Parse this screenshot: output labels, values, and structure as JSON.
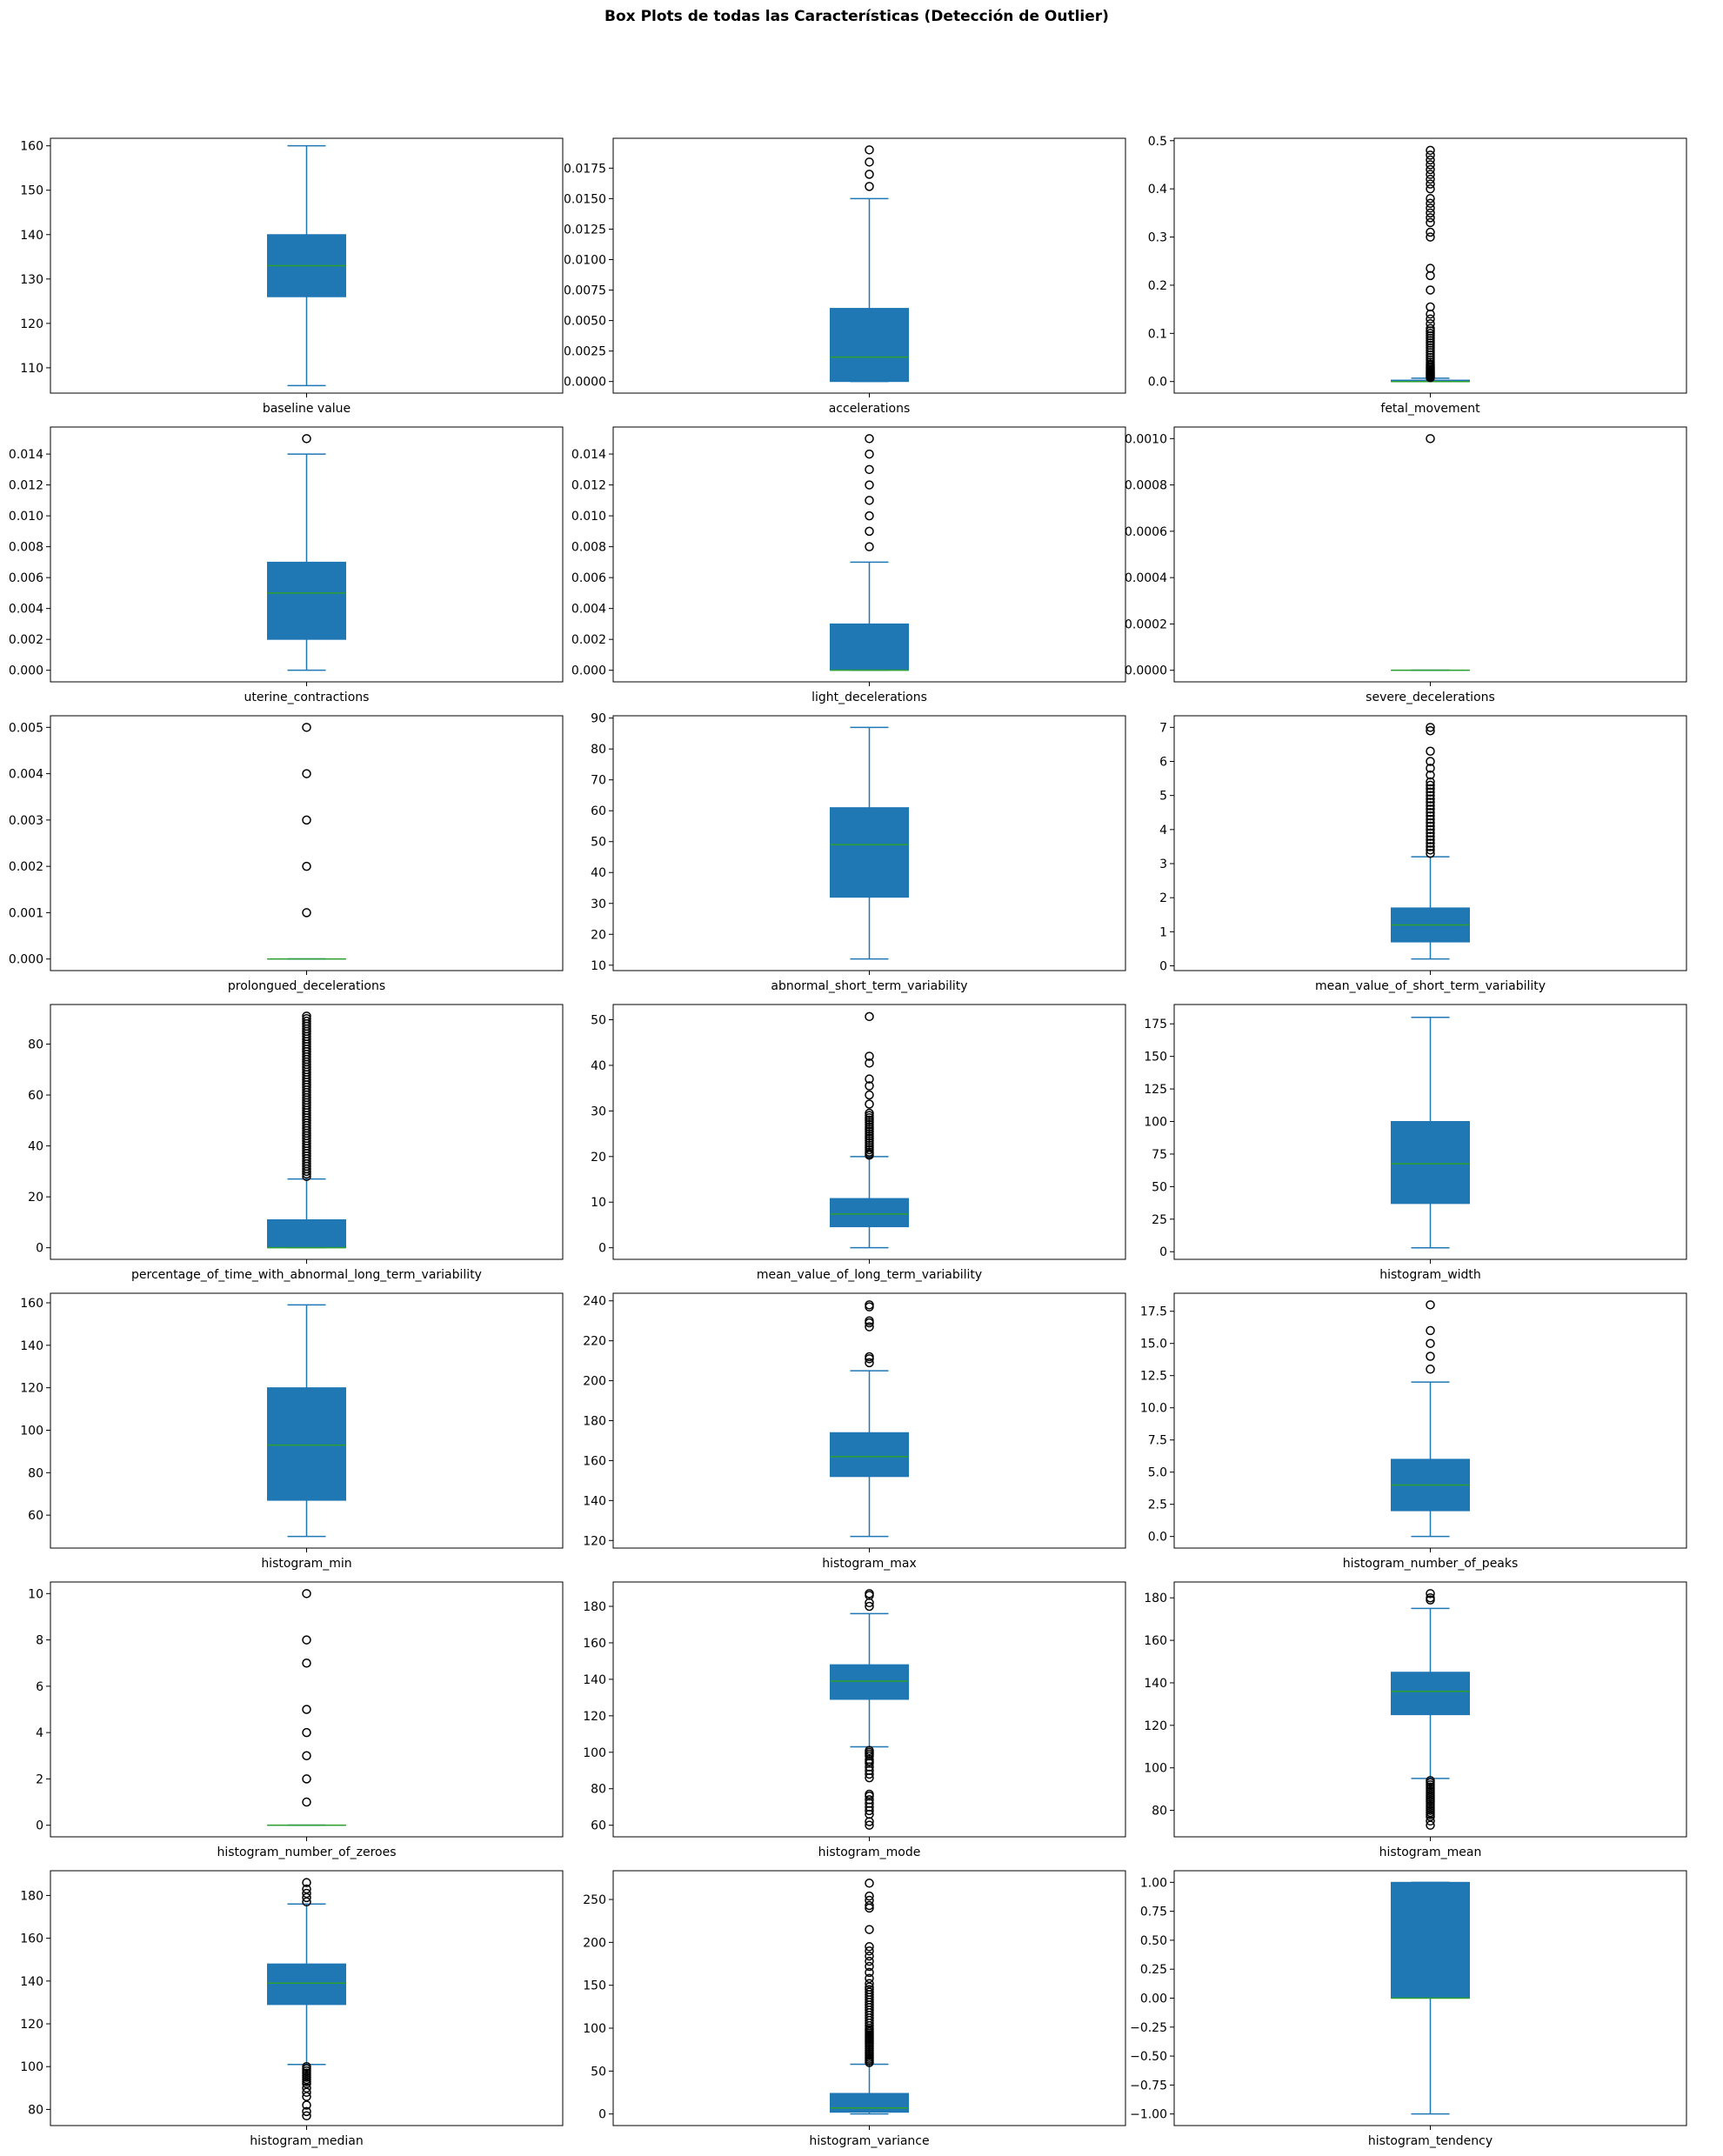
{
  "figure": {
    "title": "Box Plots de todas las Características (Detección de Outlier)"
  },
  "colors": {
    "box_fill": "#1f77b4",
    "whisker": "#1f77b4",
    "median": "#2ca02c",
    "flier_edge": "#000000",
    "axes": "#000000"
  },
  "chart_data": [
    {
      "type": "box",
      "label": "baseline value",
      "ylim": [
        104.3,
        161.7
      ],
      "ticks": [
        110,
        120,
        130,
        140,
        150,
        160
      ],
      "tick_labels": [
        "110",
        "120",
        "130",
        "140",
        "150",
        "160"
      ],
      "stats": {
        "q1": 126,
        "median": 133,
        "q3": 140,
        "whislo": 106,
        "whishi": 160
      },
      "fliers": []
    },
    {
      "type": "box",
      "label": "accelerations",
      "ylim": [
        -0.00095,
        0.01995
      ],
      "ticks": [
        0,
        0.0025,
        0.005,
        0.0075,
        0.01,
        0.0125,
        0.015,
        0.0175
      ],
      "tick_labels": [
        "0.0000",
        "0.0025",
        "0.0050",
        "0.0075",
        "0.0100",
        "0.0125",
        "0.0150",
        "0.0175"
      ],
      "stats": {
        "q1": 0,
        "median": 0.002,
        "q3": 0.006,
        "whislo": 0,
        "whishi": 0.015
      },
      "fliers": [
        0.016,
        0.017,
        0.018,
        0.019
      ]
    },
    {
      "type": "box",
      "label": "fetal_movement",
      "ylim": [
        -0.024,
        0.505
      ],
      "ticks": [
        0,
        0.1,
        0.2,
        0.3,
        0.4,
        0.5
      ],
      "tick_labels": [
        "0.0",
        "0.1",
        "0.2",
        "0.3",
        "0.4",
        "0.5"
      ],
      "stats": {
        "q1": 0,
        "median": 0,
        "q3": 0.003,
        "whislo": 0,
        "whishi": 0.007
      },
      "fliers": [
        0.008,
        0.01,
        0.012,
        0.014,
        0.016,
        0.018,
        0.02,
        0.022,
        0.025,
        0.028,
        0.03,
        0.033,
        0.036,
        0.04,
        0.045,
        0.05,
        0.055,
        0.06,
        0.065,
        0.07,
        0.075,
        0.08,
        0.085,
        0.09,
        0.095,
        0.1,
        0.105,
        0.11,
        0.12,
        0.13,
        0.14,
        0.155,
        0.19,
        0.22,
        0.235,
        0.3,
        0.31,
        0.33,
        0.34,
        0.35,
        0.36,
        0.37,
        0.38,
        0.4,
        0.41,
        0.42,
        0.43,
        0.44,
        0.45,
        0.46,
        0.47,
        0.48
      ]
    },
    {
      "type": "box",
      "label": "uterine_contractions",
      "ylim": [
        -0.00075,
        0.01575
      ],
      "ticks": [
        0,
        0.002,
        0.004,
        0.006,
        0.008,
        0.01,
        0.012,
        0.014
      ],
      "tick_labels": [
        "0.000",
        "0.002",
        "0.004",
        "0.006",
        "0.008",
        "0.010",
        "0.012",
        "0.014"
      ],
      "stats": {
        "q1": 0.002,
        "median": 0.005,
        "q3": 0.007,
        "whislo": 0,
        "whishi": 0.014
      },
      "fliers": [
        0.015
      ]
    },
    {
      "type": "box",
      "label": "light_decelerations",
      "ylim": [
        -0.00075,
        0.01575
      ],
      "ticks": [
        0,
        0.002,
        0.004,
        0.006,
        0.008,
        0.01,
        0.012,
        0.014
      ],
      "tick_labels": [
        "0.000",
        "0.002",
        "0.004",
        "0.006",
        "0.008",
        "0.010",
        "0.012",
        "0.014"
      ],
      "stats": {
        "q1": 0,
        "median": 0,
        "q3": 0.003,
        "whislo": 0,
        "whishi": 0.007
      },
      "fliers": [
        0.008,
        0.009,
        0.01,
        0.011,
        0.012,
        0.013,
        0.014,
        0.015
      ]
    },
    {
      "type": "box",
      "label": "severe_decelerations",
      "ylim": [
        -5e-05,
        0.00105
      ],
      "ticks": [
        0,
        0.0002,
        0.0004,
        0.0006,
        0.0008,
        0.001
      ],
      "tick_labels": [
        "0.0000",
        "0.0002",
        "0.0004",
        "0.0006",
        "0.0008",
        "0.0010"
      ],
      "stats": {
        "q1": 0,
        "median": 0,
        "q3": 0,
        "whislo": 0,
        "whishi": 0
      },
      "fliers": [
        0.001
      ]
    },
    {
      "type": "box",
      "label": "prolongued_decelerations",
      "ylim": [
        -0.00025,
        0.00525
      ],
      "ticks": [
        0,
        0.001,
        0.002,
        0.003,
        0.004,
        0.005
      ],
      "tick_labels": [
        "0.000",
        "0.001",
        "0.002",
        "0.003",
        "0.004",
        "0.005"
      ],
      "stats": {
        "q1": 0,
        "median": 0,
        "q3": 0,
        "whislo": 0,
        "whishi": 0
      },
      "fliers": [
        0.001,
        0.002,
        0.003,
        0.004,
        0.005
      ]
    },
    {
      "type": "box",
      "label": "abnormal_short_term_variability",
      "ylim": [
        8.25,
        90.75
      ],
      "ticks": [
        10,
        20,
        30,
        40,
        50,
        60,
        70,
        80,
        90
      ],
      "tick_labels": [
        "10",
        "20",
        "30",
        "40",
        "50",
        "60",
        "70",
        "80",
        "90"
      ],
      "stats": {
        "q1": 32,
        "median": 49,
        "q3": 61,
        "whislo": 12,
        "whishi": 87
      },
      "fliers": []
    },
    {
      "type": "box",
      "label": "mean_value_of_short_term_variability",
      "ylim": [
        -0.14,
        7.34
      ],
      "ticks": [
        0,
        1,
        2,
        3,
        4,
        5,
        6,
        7
      ],
      "tick_labels": [
        "0",
        "1",
        "2",
        "3",
        "4",
        "5",
        "6",
        "7"
      ],
      "stats": {
        "q1": 0.7,
        "median": 1.2,
        "q3": 1.7,
        "whislo": 0.2,
        "whishi": 3.2
      },
      "fliers": [
        3.3,
        3.4,
        3.5,
        3.6,
        3.7,
        3.8,
        3.9,
        4.0,
        4.1,
        4.2,
        4.3,
        4.4,
        4.5,
        4.6,
        4.7,
        4.8,
        4.9,
        5.0,
        5.1,
        5.2,
        5.3,
        5.4,
        5.6,
        5.8,
        6.0,
        6.3,
        6.9,
        7.0
      ]
    },
    {
      "type": "box",
      "label": "percentage_of_time_with_abnormal_long_term_variability",
      "ylim": [
        -4.55,
        95.55
      ],
      "ticks": [
        0,
        20,
        40,
        60,
        80
      ],
      "tick_labels": [
        "0",
        "20",
        "40",
        "60",
        "80"
      ],
      "stats": {
        "q1": 0,
        "median": 0,
        "q3": 11,
        "whislo": 0,
        "whishi": 27
      },
      "fliers": [
        28,
        29,
        30,
        31,
        32,
        33,
        34,
        35,
        36,
        37,
        38,
        39,
        40,
        41,
        42,
        43,
        44,
        45,
        46,
        47,
        48,
        49,
        50,
        51,
        52,
        53,
        54,
        55,
        56,
        57,
        58,
        59,
        60,
        61,
        62,
        63,
        64,
        65,
        66,
        67,
        68,
        69,
        70,
        71,
        72,
        73,
        74,
        75,
        76,
        77,
        78,
        79,
        80,
        81,
        82,
        83,
        84,
        85,
        86,
        87,
        88,
        89,
        90,
        91
      ]
    },
    {
      "type": "box",
      "label": "mean_value_of_long_term_variability",
      "ylim": [
        -2.54,
        53.34
      ],
      "ticks": [
        0,
        10,
        20,
        30,
        40,
        50
      ],
      "tick_labels": [
        "0",
        "10",
        "20",
        "30",
        "40",
        "50"
      ],
      "stats": {
        "q1": 4.6,
        "median": 7.4,
        "q3": 10.8,
        "whislo": 0,
        "whishi": 20
      },
      "fliers": [
        20.3,
        20.6,
        21,
        21.5,
        22,
        22.5,
        23,
        23.5,
        24,
        24.5,
        25,
        25.5,
        26,
        26.5,
        27,
        27.5,
        28,
        28.5,
        29,
        29.5,
        31.5,
        33.5,
        35.5,
        37,
        40.5,
        42,
        50.7
      ]
    },
    {
      "type": "box",
      "label": "histogram_width",
      "ylim": [
        -5.85,
        189.85
      ],
      "ticks": [
        0,
        25,
        50,
        75,
        100,
        125,
        150,
        175
      ],
      "tick_labels": [
        "0",
        "25",
        "50",
        "75",
        "100",
        "125",
        "150",
        "175"
      ],
      "stats": {
        "q1": 37,
        "median": 67.5,
        "q3": 100,
        "whislo": 3,
        "whishi": 180
      },
      "fliers": []
    },
    {
      "type": "box",
      "label": "histogram_min",
      "ylim": [
        44.5,
        164.5
      ],
      "ticks": [
        60,
        80,
        100,
        120,
        140,
        160
      ],
      "tick_labels": [
        "60",
        "80",
        "100",
        "120",
        "140",
        "160"
      ],
      "stats": {
        "q1": 67,
        "median": 93,
        "q3": 120,
        "whislo": 50,
        "whishi": 159
      },
      "fliers": []
    },
    {
      "type": "box",
      "label": "histogram_max",
      "ylim": [
        116.2,
        243.8
      ],
      "ticks": [
        120,
        140,
        160,
        180,
        200,
        220,
        240
      ],
      "tick_labels": [
        "120",
        "140",
        "160",
        "180",
        "200",
        "220",
        "240"
      ],
      "stats": {
        "q1": 152,
        "median": 162,
        "q3": 174,
        "whislo": 122,
        "whishi": 205
      },
      "fliers": [
        209,
        211,
        212,
        227,
        229,
        230,
        237,
        238
      ]
    },
    {
      "type": "box",
      "label": "histogram_number_of_peaks",
      "ylim": [
        -0.9,
        18.9
      ],
      "ticks": [
        0,
        2.5,
        5,
        7.5,
        10,
        12.5,
        15,
        17.5
      ],
      "tick_labels": [
        "0.0",
        "2.5",
        "5.0",
        "7.5",
        "10.0",
        "12.5",
        "15.0",
        "17.5"
      ],
      "stats": {
        "q1": 2,
        "median": 4,
        "q3": 6,
        "whislo": 0,
        "whishi": 12
      },
      "fliers": [
        13,
        14,
        15,
        16,
        18
      ]
    },
    {
      "type": "box",
      "label": "histogram_number_of_zeroes",
      "ylim": [
        -0.5,
        10.5
      ],
      "ticks": [
        0,
        2,
        4,
        6,
        8,
        10
      ],
      "tick_labels": [
        "0",
        "2",
        "4",
        "6",
        "8",
        "10"
      ],
      "stats": {
        "q1": 0,
        "median": 0,
        "q3": 0,
        "whislo": 0,
        "whishi": 0
      },
      "fliers": [
        1,
        2,
        3,
        4,
        5,
        7,
        8,
        10
      ]
    },
    {
      "type": "box",
      "label": "histogram_mode",
      "ylim": [
        53.65,
        193.35
      ],
      "ticks": [
        60,
        80,
        100,
        120,
        140,
        160,
        180
      ],
      "tick_labels": [
        "60",
        "80",
        "100",
        "120",
        "140",
        "160",
        "180"
      ],
      "stats": {
        "q1": 129,
        "median": 139,
        "q3": 148,
        "whislo": 103,
        "whishi": 176
      },
      "fliers": [
        60,
        62,
        66,
        68,
        70,
        72,
        74,
        76,
        77,
        86,
        88,
        90,
        92,
        94,
        95,
        96,
        98,
        99,
        100,
        101,
        180,
        182,
        186,
        187
      ]
    },
    {
      "type": "box",
      "label": "histogram_mean",
      "ylim": [
        67.55,
        187.45
      ],
      "ticks": [
        80,
        100,
        120,
        140,
        160,
        180
      ],
      "tick_labels": [
        "80",
        "100",
        "120",
        "140",
        "160",
        "180"
      ],
      "stats": {
        "q1": 125,
        "median": 136,
        "q3": 145,
        "whislo": 95,
        "whishi": 175
      },
      "fliers": [
        73,
        75,
        77,
        78,
        79,
        80,
        81,
        82,
        83,
        84,
        85,
        86,
        87,
        88,
        89,
        90,
        91,
        92,
        93,
        94,
        179,
        180,
        182
      ]
    },
    {
      "type": "box",
      "label": "histogram_median",
      "ylim": [
        72.45,
        191.55
      ],
      "ticks": [
        80,
        100,
        120,
        140,
        160,
        180
      ],
      "tick_labels": [
        "80",
        "100",
        "120",
        "140",
        "160",
        "180"
      ],
      "stats": {
        "q1": 129,
        "median": 139,
        "q3": 148,
        "whislo": 101,
        "whishi": 176
      },
      "fliers": [
        77,
        79,
        82,
        86,
        88,
        90,
        92,
        93,
        94,
        95,
        96,
        97,
        98,
        99,
        100,
        177,
        179,
        181,
        183,
        186
      ]
    },
    {
      "type": "box",
      "label": "histogram_variance",
      "ylim": [
        -13.5,
        283.5
      ],
      "ticks": [
        0,
        50,
        100,
        150,
        200,
        250
      ],
      "tick_labels": [
        "0",
        "50",
        "100",
        "150",
        "200",
        "250"
      ],
      "stats": {
        "q1": 2,
        "median": 7,
        "q3": 24,
        "whislo": 0,
        "whishi": 58
      },
      "fliers": [
        60,
        62,
        64,
        66,
        68,
        70,
        72,
        74,
        76,
        78,
        80,
        82,
        84,
        86,
        88,
        90,
        92,
        94,
        96,
        98,
        100,
        103,
        106,
        109,
        112,
        115,
        118,
        121,
        124,
        127,
        130,
        133,
        136,
        139,
        142,
        145,
        148,
        152,
        158,
        165,
        172,
        178,
        184,
        190,
        195,
        215,
        240,
        243,
        249,
        254,
        269
      ]
    },
    {
      "type": "box",
      "label": "histogram_tendency",
      "ylim": [
        -1.1,
        1.1
      ],
      "ticks": [
        -1,
        -0.75,
        -0.5,
        -0.25,
        0,
        0.25,
        0.5,
        0.75,
        1
      ],
      "tick_labels": [
        "−1.00",
        "−0.75",
        "−0.50",
        "−0.25",
        "0.00",
        "0.25",
        "0.50",
        "0.75",
        "1.00"
      ],
      "stats": {
        "q1": 0,
        "median": 0,
        "q3": 1,
        "whislo": -1,
        "whishi": 1
      },
      "fliers": []
    }
  ]
}
